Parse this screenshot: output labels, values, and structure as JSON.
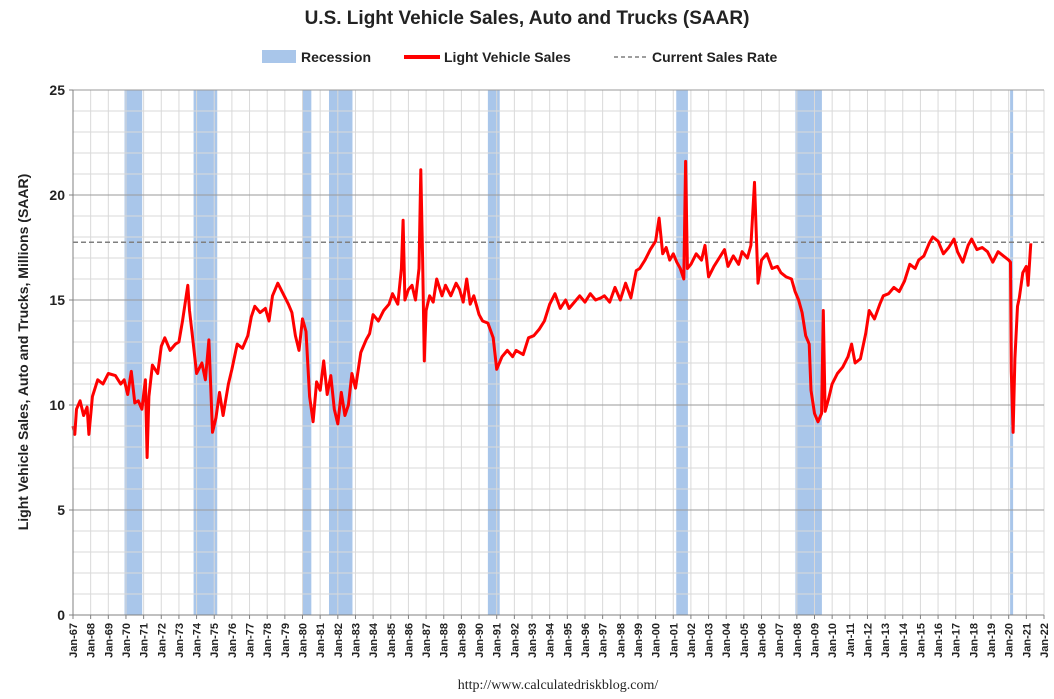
{
  "chart_data": {
    "type": "line",
    "title": "U.S. Light Vehicle Sales, Auto and Trucks (SAAR)",
    "ylabel": "Light Vehicle Sales, Auto and Trucks, Millions (SAAR)",
    "xlabel": "",
    "ylim": [
      0,
      25
    ],
    "yticks": [
      "0",
      "5",
      "10",
      "15",
      "20",
      "25"
    ],
    "grid": true,
    "legend_position": "top",
    "legend": {
      "recession": "Recession",
      "sales": "Light Vehicle Sales",
      "current": "Current Sales Rate"
    },
    "x_start_year": 1967,
    "x_end_year": 2022,
    "xticks": [
      "Jan-67",
      "Jan-68",
      "Jan-69",
      "Jan-70",
      "Jan-71",
      "Jan-72",
      "Jan-73",
      "Jan-74",
      "Jan-75",
      "Jan-76",
      "Jan-77",
      "Jan-78",
      "Jan-79",
      "Jan-80",
      "Jan-81",
      "Jan-82",
      "Jan-83",
      "Jan-84",
      "Jan-85",
      "Jan-86",
      "Jan-87",
      "Jan-88",
      "Jan-89",
      "Jan-90",
      "Jan-91",
      "Jan-92",
      "Jan-93",
      "Jan-94",
      "Jan-95",
      "Jan-96",
      "Jan-97",
      "Jan-98",
      "Jan-99",
      "Jan-00",
      "Jan-01",
      "Jan-02",
      "Jan-03",
      "Jan-04",
      "Jan-05",
      "Jan-06",
      "Jan-07",
      "Jan-08",
      "Jan-09",
      "Jan-10",
      "Jan-11",
      "Jan-12",
      "Jan-13",
      "Jan-14",
      "Jan-15",
      "Jan-16",
      "Jan-17",
      "Jan-18",
      "Jan-19",
      "Jan-20",
      "Jan-21",
      "Jan-22"
    ],
    "current_sales_rate": 17.75,
    "recessions": [
      {
        "start": 1969.92,
        "end": 1970.92
      },
      {
        "start": 1973.83,
        "end": 1975.17
      },
      {
        "start": 1980.0,
        "end": 1980.5
      },
      {
        "start": 1981.5,
        "end": 1982.83
      },
      {
        "start": 1990.5,
        "end": 1991.17
      },
      {
        "start": 2001.17,
        "end": 2001.83
      },
      {
        "start": 2007.92,
        "end": 2009.42
      },
      {
        "start": 2020.08,
        "end": 2020.25
      }
    ],
    "series": [
      {
        "name": "Light Vehicle Sales",
        "points": [
          [
            1967.0,
            9.0
          ],
          [
            1967.1,
            8.6
          ],
          [
            1967.2,
            9.8
          ],
          [
            1967.4,
            10.2
          ],
          [
            1967.6,
            9.5
          ],
          [
            1967.8,
            9.9
          ],
          [
            1967.9,
            8.6
          ],
          [
            1968.1,
            10.4
          ],
          [
            1968.4,
            11.2
          ],
          [
            1968.7,
            11.0
          ],
          [
            1969.0,
            11.5
          ],
          [
            1969.4,
            11.4
          ],
          [
            1969.7,
            11.0
          ],
          [
            1969.9,
            11.2
          ],
          [
            1970.1,
            10.5
          ],
          [
            1970.3,
            11.6
          ],
          [
            1970.5,
            10.1
          ],
          [
            1970.7,
            10.2
          ],
          [
            1970.9,
            9.8
          ],
          [
            1971.1,
            11.2
          ],
          [
            1971.2,
            7.5
          ],
          [
            1971.3,
            10.4
          ],
          [
            1971.5,
            11.9
          ],
          [
            1971.8,
            11.5
          ],
          [
            1972.0,
            12.8
          ],
          [
            1972.2,
            13.2
          ],
          [
            1972.5,
            12.6
          ],
          [
            1972.8,
            12.9
          ],
          [
            1973.0,
            13.0
          ],
          [
            1973.2,
            14.0
          ],
          [
            1973.5,
            15.7
          ],
          [
            1973.6,
            14.5
          ],
          [
            1973.8,
            13.0
          ],
          [
            1974.0,
            11.5
          ],
          [
            1974.3,
            12.0
          ],
          [
            1974.5,
            11.2
          ],
          [
            1974.7,
            13.1
          ],
          [
            1974.9,
            8.7
          ],
          [
            1975.1,
            9.4
          ],
          [
            1975.3,
            10.6
          ],
          [
            1975.5,
            9.5
          ],
          [
            1975.8,
            11.0
          ],
          [
            1976.0,
            11.7
          ],
          [
            1976.3,
            12.9
          ],
          [
            1976.6,
            12.7
          ],
          [
            1976.9,
            13.3
          ],
          [
            1977.1,
            14.2
          ],
          [
            1977.3,
            14.7
          ],
          [
            1977.6,
            14.4
          ],
          [
            1977.9,
            14.6
          ],
          [
            1978.1,
            14.0
          ],
          [
            1978.3,
            15.2
          ],
          [
            1978.6,
            15.8
          ],
          [
            1978.9,
            15.3
          ],
          [
            1979.2,
            14.8
          ],
          [
            1979.4,
            14.4
          ],
          [
            1979.6,
            13.3
          ],
          [
            1979.8,
            12.6
          ],
          [
            1980.0,
            14.1
          ],
          [
            1980.2,
            13.5
          ],
          [
            1980.4,
            10.4
          ],
          [
            1980.6,
            9.2
          ],
          [
            1980.8,
            11.1
          ],
          [
            1981.0,
            10.7
          ],
          [
            1981.2,
            12.1
          ],
          [
            1981.4,
            10.5
          ],
          [
            1981.6,
            11.4
          ],
          [
            1981.8,
            9.8
          ],
          [
            1982.0,
            9.1
          ],
          [
            1982.2,
            10.6
          ],
          [
            1982.4,
            9.5
          ],
          [
            1982.6,
            10.0
          ],
          [
            1982.8,
            11.5
          ],
          [
            1983.0,
            10.8
          ],
          [
            1983.3,
            12.5
          ],
          [
            1983.6,
            13.1
          ],
          [
            1983.8,
            13.4
          ],
          [
            1984.0,
            14.3
          ],
          [
            1984.3,
            14.0
          ],
          [
            1984.6,
            14.5
          ],
          [
            1984.9,
            14.8
          ],
          [
            1985.1,
            15.3
          ],
          [
            1985.4,
            14.8
          ],
          [
            1985.6,
            16.5
          ],
          [
            1985.7,
            18.8
          ],
          [
            1985.8,
            15.0
          ],
          [
            1986.0,
            15.5
          ],
          [
            1986.2,
            15.7
          ],
          [
            1986.4,
            15.0
          ],
          [
            1986.6,
            16.5
          ],
          [
            1986.7,
            21.2
          ],
          [
            1986.8,
            17.0
          ],
          [
            1986.9,
            12.1
          ],
          [
            1987.0,
            14.5
          ],
          [
            1987.2,
            15.2
          ],
          [
            1987.4,
            14.9
          ],
          [
            1987.6,
            16.0
          ],
          [
            1987.9,
            15.2
          ],
          [
            1988.1,
            15.7
          ],
          [
            1988.4,
            15.2
          ],
          [
            1988.7,
            15.8
          ],
          [
            1988.9,
            15.5
          ],
          [
            1989.1,
            14.9
          ],
          [
            1989.3,
            16.0
          ],
          [
            1989.5,
            14.8
          ],
          [
            1989.7,
            15.2
          ],
          [
            1990.0,
            14.3
          ],
          [
            1990.2,
            14.0
          ],
          [
            1990.5,
            13.9
          ],
          [
            1990.8,
            13.2
          ],
          [
            1991.0,
            11.7
          ],
          [
            1991.3,
            12.3
          ],
          [
            1991.6,
            12.6
          ],
          [
            1991.9,
            12.3
          ],
          [
            1992.1,
            12.6
          ],
          [
            1992.5,
            12.4
          ],
          [
            1992.8,
            13.2
          ],
          [
            1993.1,
            13.3
          ],
          [
            1993.4,
            13.6
          ],
          [
            1993.7,
            14.0
          ],
          [
            1994.0,
            14.8
          ],
          [
            1994.3,
            15.3
          ],
          [
            1994.6,
            14.6
          ],
          [
            1994.9,
            15.0
          ],
          [
            1995.1,
            14.6
          ],
          [
            1995.4,
            14.9
          ],
          [
            1995.7,
            15.2
          ],
          [
            1996.0,
            14.9
          ],
          [
            1996.3,
            15.3
          ],
          [
            1996.6,
            15.0
          ],
          [
            1996.9,
            15.1
          ],
          [
            1997.1,
            15.2
          ],
          [
            1997.4,
            14.9
          ],
          [
            1997.7,
            15.6
          ],
          [
            1998.0,
            15.0
          ],
          [
            1998.3,
            15.8
          ],
          [
            1998.6,
            15.1
          ],
          [
            1998.9,
            16.4
          ],
          [
            1999.1,
            16.5
          ],
          [
            1999.4,
            16.9
          ],
          [
            1999.7,
            17.4
          ],
          [
            2000.0,
            17.8
          ],
          [
            2000.2,
            18.9
          ],
          [
            2000.4,
            17.2
          ],
          [
            2000.6,
            17.5
          ],
          [
            2000.8,
            16.9
          ],
          [
            2001.0,
            17.2
          ],
          [
            2001.2,
            16.8
          ],
          [
            2001.4,
            16.5
          ],
          [
            2001.6,
            16.0
          ],
          [
            2001.7,
            21.6
          ],
          [
            2001.8,
            16.5
          ],
          [
            2002.0,
            16.7
          ],
          [
            2002.3,
            17.2
          ],
          [
            2002.6,
            16.9
          ],
          [
            2002.8,
            17.6
          ],
          [
            2003.0,
            16.1
          ],
          [
            2003.3,
            16.6
          ],
          [
            2003.6,
            17.0
          ],
          [
            2003.9,
            17.4
          ],
          [
            2004.1,
            16.6
          ],
          [
            2004.4,
            17.1
          ],
          [
            2004.7,
            16.7
          ],
          [
            2004.9,
            17.3
          ],
          [
            2005.2,
            17.0
          ],
          [
            2005.4,
            17.6
          ],
          [
            2005.6,
            20.6
          ],
          [
            2005.8,
            15.8
          ],
          [
            2006.0,
            16.9
          ],
          [
            2006.3,
            17.2
          ],
          [
            2006.6,
            16.5
          ],
          [
            2006.9,
            16.6
          ],
          [
            2007.1,
            16.3
          ],
          [
            2007.4,
            16.1
          ],
          [
            2007.7,
            16.0
          ],
          [
            2007.9,
            15.4
          ],
          [
            2008.1,
            15.0
          ],
          [
            2008.3,
            14.4
          ],
          [
            2008.5,
            13.3
          ],
          [
            2008.7,
            12.9
          ],
          [
            2008.8,
            10.7
          ],
          [
            2009.0,
            9.6
          ],
          [
            2009.2,
            9.2
          ],
          [
            2009.4,
            9.6
          ],
          [
            2009.5,
            14.5
          ],
          [
            2009.6,
            9.7
          ],
          [
            2009.8,
            10.3
          ],
          [
            2010.0,
            11.0
          ],
          [
            2010.3,
            11.5
          ],
          [
            2010.6,
            11.8
          ],
          [
            2010.9,
            12.3
          ],
          [
            2011.1,
            12.9
          ],
          [
            2011.3,
            12.0
          ],
          [
            2011.6,
            12.2
          ],
          [
            2011.9,
            13.4
          ],
          [
            2012.1,
            14.5
          ],
          [
            2012.4,
            14.1
          ],
          [
            2012.7,
            14.8
          ],
          [
            2012.9,
            15.2
          ],
          [
            2013.2,
            15.3
          ],
          [
            2013.5,
            15.6
          ],
          [
            2013.8,
            15.4
          ],
          [
            2014.1,
            15.9
          ],
          [
            2014.4,
            16.7
          ],
          [
            2014.7,
            16.5
          ],
          [
            2014.9,
            16.9
          ],
          [
            2015.2,
            17.1
          ],
          [
            2015.5,
            17.7
          ],
          [
            2015.7,
            18.0
          ],
          [
            2016.0,
            17.8
          ],
          [
            2016.3,
            17.2
          ],
          [
            2016.6,
            17.5
          ],
          [
            2016.9,
            17.9
          ],
          [
            2017.1,
            17.3
          ],
          [
            2017.4,
            16.8
          ],
          [
            2017.7,
            17.6
          ],
          [
            2017.9,
            17.9
          ],
          [
            2018.2,
            17.4
          ],
          [
            2018.5,
            17.5
          ],
          [
            2018.8,
            17.3
          ],
          [
            2019.1,
            16.8
          ],
          [
            2019.4,
            17.3
          ],
          [
            2019.7,
            17.1
          ],
          [
            2020.0,
            16.9
          ],
          [
            2020.1,
            16.8
          ],
          [
            2020.15,
            11.6
          ],
          [
            2020.25,
            8.7
          ],
          [
            2020.35,
            12.2
          ],
          [
            2020.5,
            14.7
          ],
          [
            2020.6,
            15.1
          ],
          [
            2020.8,
            16.3
          ],
          [
            2021.0,
            16.6
          ],
          [
            2021.1,
            15.7
          ],
          [
            2021.25,
            17.7
          ]
        ]
      }
    ]
  },
  "source_url": "http://www.calculatedriskblog.com/",
  "colors": {
    "recession": "#a9c6ea",
    "sales_line": "#ff0000",
    "current_line": "#7f7f7f",
    "grid": "#d9d9d9",
    "axis": "#808080"
  }
}
